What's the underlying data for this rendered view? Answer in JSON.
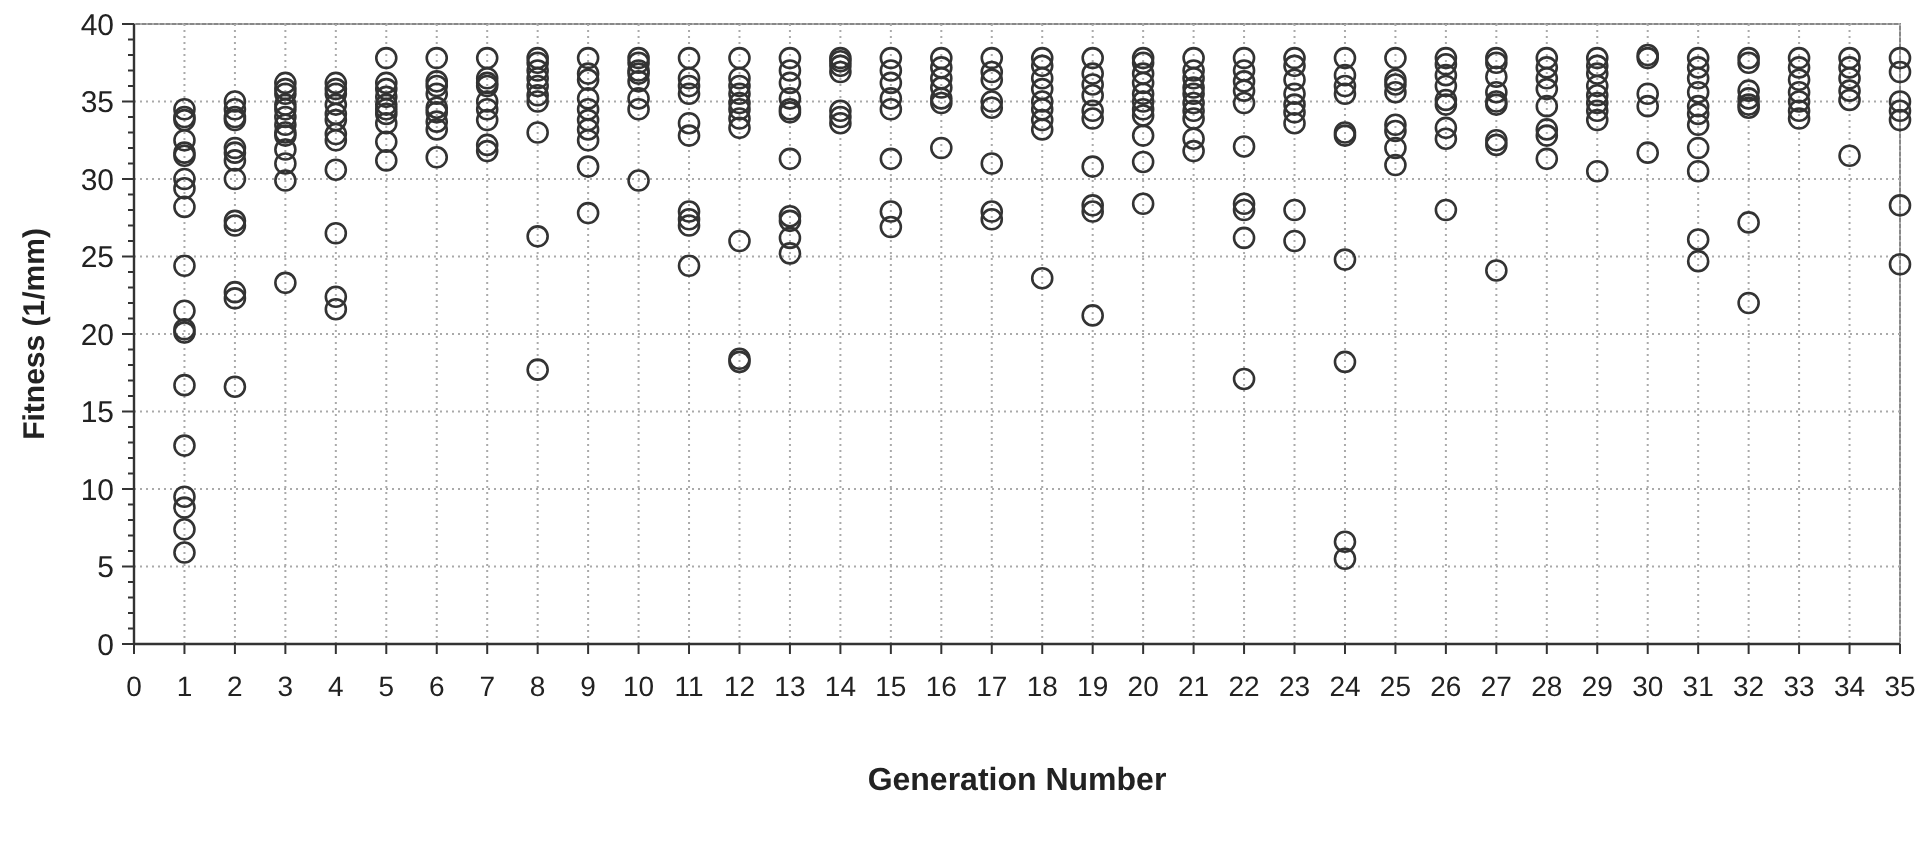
{
  "chart_data": {
    "type": "scatter",
    "xlabel": "Generation Number",
    "ylabel": "Fitness (1/mm)",
    "xlim": [
      0,
      35
    ],
    "xticks": [
      0,
      1,
      2,
      3,
      4,
      5,
      6,
      7,
      8,
      9,
      10,
      11,
      12,
      13,
      14,
      15,
      16,
      17,
      18,
      19,
      20,
      21,
      22,
      23,
      24,
      25,
      26,
      27,
      28,
      29,
      30,
      31,
      32,
      33,
      34,
      35
    ],
    "ylim": [
      0,
      40
    ],
    "yticks": [
      0,
      5,
      10,
      15,
      20,
      25,
      30,
      35,
      40
    ],
    "grid": true,
    "marker": "circle",
    "series": [
      {
        "color": "#333333",
        "x": [
          1,
          1,
          1,
          1,
          1,
          1,
          1,
          1,
          1,
          1,
          1,
          1,
          1,
          1,
          1,
          1,
          1,
          1,
          1
        ],
        "values": [
          34.5,
          34,
          33.8,
          32.5,
          31.5,
          31.7,
          30,
          29.4,
          28.2,
          24.4,
          21.5,
          20.3,
          20.1,
          16.7,
          12.8,
          9.5,
          8.8,
          7.4,
          5.9
        ]
      },
      {
        "color": "#333333",
        "x": [
          2,
          2,
          2,
          2,
          2,
          2,
          2,
          2,
          2,
          2,
          2,
          2,
          2
        ],
        "values": [
          35,
          34.5,
          34,
          33.8,
          32,
          31.7,
          31.2,
          30,
          27.3,
          27,
          22.7,
          22.3,
          16.6
        ]
      },
      {
        "color": "#333333",
        "x": [
          3,
          3,
          3,
          3,
          3,
          3,
          3,
          3,
          3,
          3,
          3,
          3,
          3
        ],
        "values": [
          36.2,
          35.8,
          35.5,
          34.8,
          34.5,
          34,
          33.5,
          33,
          32.8,
          31.9,
          31,
          29.9,
          23.3
        ]
      },
      {
        "color": "#333333",
        "x": [
          4,
          4,
          4,
          4,
          4,
          4,
          4,
          4,
          4,
          4,
          4,
          4
        ],
        "values": [
          36.2,
          35.8,
          35.5,
          34.8,
          34.2,
          33.8,
          32.9,
          32.5,
          30.6,
          26.5,
          22.4,
          21.6
        ]
      },
      {
        "color": "#333333",
        "x": [
          5,
          5,
          5,
          5,
          5,
          5,
          5,
          5,
          5,
          5
        ],
        "values": [
          37.8,
          36.2,
          35.8,
          35.3,
          34.8,
          34.5,
          34.2,
          33.6,
          32.4,
          31.2
        ]
      },
      {
        "color": "#333333",
        "x": [
          6,
          6,
          6,
          6,
          6,
          6,
          6,
          6,
          6
        ],
        "values": [
          37.8,
          36.3,
          36,
          35.5,
          34.6,
          34.3,
          33.7,
          33.2,
          31.4
        ]
      },
      {
        "color": "#333333",
        "x": [
          7,
          7,
          7,
          7,
          7,
          7,
          7,
          7,
          7
        ],
        "values": [
          37.8,
          36.5,
          36.2,
          36,
          35,
          34.5,
          33.8,
          32.2,
          31.8
        ]
      },
      {
        "color": "#333333",
        "x": [
          8,
          8,
          8,
          8,
          8,
          8,
          8,
          8,
          8,
          8
        ],
        "values": [
          37.8,
          37.5,
          37,
          36.5,
          36,
          35.4,
          35,
          33,
          26.3,
          17.7
        ]
      },
      {
        "color": "#333333",
        "x": [
          9,
          9,
          9,
          9,
          9,
          9,
          9,
          9,
          9,
          9
        ],
        "values": [
          37.8,
          36.8,
          36.4,
          35.2,
          34.5,
          33.8,
          33.2,
          32.5,
          30.8,
          27.8
        ]
      },
      {
        "color": "#333333",
        "x": [
          10,
          10,
          10,
          10,
          10,
          10,
          10,
          10
        ],
        "values": [
          37.8,
          37.5,
          37,
          36.8,
          36.3,
          35.2,
          34.5,
          29.9
        ]
      },
      {
        "color": "#333333",
        "x": [
          11,
          11,
          11,
          11,
          11,
          11,
          11,
          11,
          11,
          11
        ],
        "values": [
          37.8,
          36.5,
          36,
          35.5,
          33.6,
          32.8,
          27.9,
          27.4,
          27,
          24.4
        ]
      },
      {
        "color": "#333333",
        "x": [
          12,
          12,
          12,
          12,
          12,
          12,
          12,
          12,
          12,
          12,
          12
        ],
        "values": [
          37.8,
          36.5,
          36,
          35.5,
          34.9,
          34.5,
          33.9,
          33.3,
          26,
          18.4,
          18.2
        ]
      },
      {
        "color": "#333333",
        "x": [
          13,
          13,
          13,
          13,
          13,
          13,
          13,
          13,
          13,
          13,
          13
        ],
        "values": [
          37.8,
          37,
          36.2,
          35.2,
          34.5,
          34.3,
          31.3,
          27.6,
          27.3,
          26.2,
          25.2
        ]
      },
      {
        "color": "#333333",
        "x": [
          14,
          14,
          14,
          14,
          14,
          14,
          14
        ],
        "values": [
          37.8,
          37.6,
          37.3,
          36.9,
          34.4,
          34,
          33.6
        ]
      },
      {
        "color": "#333333",
        "x": [
          15,
          15,
          15,
          15,
          15,
          15,
          15,
          15
        ],
        "values": [
          37.8,
          37,
          36.2,
          35.2,
          34.5,
          31.3,
          27.9,
          26.9
        ]
      },
      {
        "color": "#333333",
        "x": [
          16,
          16,
          16,
          16,
          16,
          16,
          16
        ],
        "values": [
          37.8,
          37.2,
          36.5,
          35.9,
          35.2,
          34.9,
          32
        ]
      },
      {
        "color": "#333333",
        "x": [
          17,
          17,
          17,
          17,
          17,
          17,
          17,
          17
        ],
        "values": [
          37.8,
          36.9,
          36.4,
          35,
          34.6,
          31,
          27.9,
          27.4
        ]
      },
      {
        "color": "#333333",
        "x": [
          18,
          18,
          18,
          18,
          18,
          18,
          18,
          18,
          18
        ],
        "values": [
          37.8,
          37.3,
          36.5,
          35.8,
          35,
          34.5,
          33.8,
          33.2,
          23.6
        ]
      },
      {
        "color": "#333333",
        "x": [
          19,
          19,
          19,
          19,
          19,
          19,
          19,
          19,
          19,
          19
        ],
        "values": [
          37.8,
          36.8,
          36.1,
          35.4,
          34.4,
          33.9,
          30.8,
          28.3,
          27.9,
          21.2
        ]
      },
      {
        "color": "#333333",
        "x": [
          20,
          20,
          20,
          20,
          20,
          20,
          20,
          20,
          20,
          20,
          20
        ],
        "values": [
          37.8,
          37.5,
          36.8,
          36.2,
          35.5,
          35,
          34.5,
          34.1,
          32.8,
          31.1,
          28.4
        ]
      },
      {
        "color": "#333333",
        "x": [
          21,
          21,
          21,
          21,
          21,
          21,
          21,
          21,
          21,
          21
        ],
        "values": [
          37.8,
          37,
          36.5,
          35.9,
          35.5,
          34.9,
          34.4,
          33.9,
          32.6,
          31.8
        ]
      },
      {
        "color": "#333333",
        "x": [
          22,
          22,
          22,
          22,
          22,
          22,
          22,
          22,
          22,
          22
        ],
        "values": [
          37.8,
          37,
          36.3,
          35.7,
          34.9,
          32.1,
          28.4,
          28,
          26.2,
          17.1
        ]
      },
      {
        "color": "#333333",
        "x": [
          23,
          23,
          23,
          23,
          23,
          23,
          23,
          23,
          23
        ],
        "values": [
          37.8,
          37.3,
          36.4,
          35.5,
          34.8,
          34.3,
          33.6,
          28,
          26
        ]
      },
      {
        "color": "#333333",
        "x": [
          24,
          24,
          24,
          24,
          24,
          24,
          24,
          24,
          24,
          24
        ],
        "values": [
          37.8,
          36.7,
          36,
          35.5,
          33,
          32.8,
          24.8,
          18.2,
          6.6,
          5.5
        ]
      },
      {
        "color": "#333333",
        "x": [
          25,
          25,
          25,
          25,
          25,
          25,
          25,
          25
        ],
        "values": [
          37.8,
          36.4,
          36.1,
          35.6,
          33.5,
          33.1,
          32,
          30.9
        ]
      },
      {
        "color": "#333333",
        "x": [
          26,
          26,
          26,
          26,
          26,
          26,
          26,
          26,
          26
        ],
        "values": [
          37.8,
          37.4,
          36.7,
          36,
          35.1,
          34.8,
          33.3,
          32.6,
          28
        ]
      },
      {
        "color": "#333333",
        "x": [
          27,
          27,
          27,
          27,
          27,
          27,
          27,
          27,
          27
        ],
        "values": [
          37.8,
          37.5,
          36.6,
          35.6,
          35,
          34.8,
          32.5,
          32.2,
          24.1
        ]
      },
      {
        "color": "#333333",
        "x": [
          28,
          28,
          28,
          28,
          28,
          28,
          28,
          28
        ],
        "values": [
          37.8,
          37.2,
          36.5,
          35.8,
          34.7,
          33.2,
          32.8,
          31.3
        ]
      },
      {
        "color": "#333333",
        "x": [
          29,
          29,
          29,
          29,
          29,
          29,
          29,
          29,
          29
        ],
        "values": [
          37.8,
          37.3,
          36.8,
          36,
          35.4,
          34.9,
          34.4,
          33.8,
          30.5
        ]
      },
      {
        "color": "#333333",
        "x": [
          30,
          30,
          30,
          30,
          30
        ],
        "values": [
          37.8,
          38,
          35.5,
          34.7,
          31.7
        ]
      },
      {
        "color": "#333333",
        "x": [
          31,
          31,
          31,
          31,
          31,
          31,
          31,
          31,
          31,
          31,
          31
        ],
        "values": [
          37.8,
          37.2,
          36.5,
          35.6,
          34.7,
          34.2,
          33.5,
          32,
          30.5,
          26.1,
          24.7
        ]
      },
      {
        "color": "#333333",
        "x": [
          32,
          32,
          32,
          32,
          32,
          32,
          32,
          32
        ],
        "values": [
          37.8,
          37.5,
          35.7,
          35.2,
          34.8,
          34.6,
          27.2,
          22
        ]
      },
      {
        "color": "#333333",
        "x": [
          33,
          33,
          33,
          33,
          33,
          33,
          33
        ],
        "values": [
          37.8,
          37.2,
          36.4,
          35.6,
          35,
          34.4,
          33.9
        ]
      },
      {
        "color": "#333333",
        "x": [
          34,
          34,
          34,
          34,
          34,
          34
        ],
        "values": [
          37.8,
          37.2,
          36.5,
          35.7,
          35.1,
          31.5
        ]
      },
      {
        "color": "#333333",
        "x": [
          35,
          35,
          35,
          35,
          35,
          35,
          35
        ],
        "values": [
          37.8,
          36.9,
          35,
          34.4,
          33.8,
          28.3,
          24.5
        ]
      }
    ]
  }
}
